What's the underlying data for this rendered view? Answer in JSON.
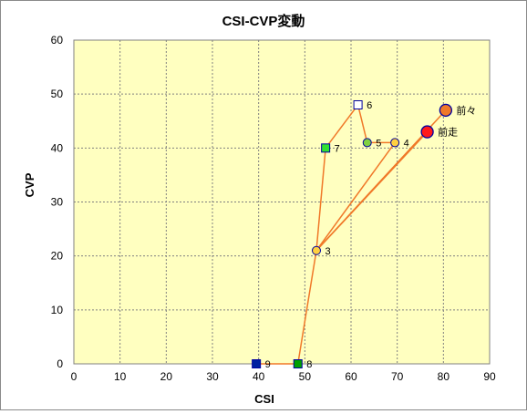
{
  "chart_data": {
    "type": "scatter",
    "title": "CSI-CVP変動",
    "xlabel": "CSI",
    "ylabel": "CVP",
    "xlim": [
      0,
      90
    ],
    "ylim": [
      0,
      60
    ],
    "x_ticks": [
      0,
      10,
      20,
      30,
      40,
      50,
      60,
      70,
      80,
      90
    ],
    "y_ticks": [
      0,
      10,
      20,
      30,
      40,
      50,
      60
    ],
    "grid": true,
    "plot_background": "#ffffc0",
    "line_color": "#f07828",
    "points": [
      {
        "id": "前々",
        "label": "前々",
        "x": 80.5,
        "y": 47,
        "marker": "circle",
        "size": "large",
        "fill": "#f07828"
      },
      {
        "id": "前走",
        "label": "前走",
        "x": 76.5,
        "y": 43,
        "marker": "circle",
        "size": "large",
        "fill": "#ff1a1a"
      },
      {
        "id": "3",
        "label": "3",
        "x": 52.5,
        "y": 21,
        "marker": "circle",
        "size": "small",
        "fill": "#ffd040"
      },
      {
        "id": "4",
        "label": "4",
        "x": 69.5,
        "y": 41,
        "marker": "circle",
        "size": "small",
        "fill": "#ffd040"
      },
      {
        "id": "5",
        "label": "5",
        "x": 63.5,
        "y": 41,
        "marker": "circle",
        "size": "small",
        "fill": "#80d040"
      },
      {
        "id": "6",
        "label": "6",
        "x": 61.5,
        "y": 48,
        "marker": "square",
        "size": "small",
        "fill": "#ffffff"
      },
      {
        "id": "7",
        "label": "7",
        "x": 54.5,
        "y": 40,
        "marker": "square",
        "size": "small",
        "fill": "#30e030"
      },
      {
        "id": "8",
        "label": "8",
        "x": 48.5,
        "y": 0,
        "marker": "square",
        "size": "small",
        "fill": "#00a000"
      },
      {
        "id": "9",
        "label": "9",
        "x": 39.5,
        "y": 0,
        "marker": "square",
        "size": "small",
        "fill": "#0020a0"
      }
    ],
    "connections": [
      [
        "前々",
        "3"
      ],
      [
        "前走",
        "3"
      ],
      [
        "4",
        "3"
      ],
      [
        "3",
        "8"
      ],
      [
        "9",
        "8"
      ],
      [
        "3",
        "7"
      ],
      [
        "7",
        "6"
      ],
      [
        "6",
        "5"
      ],
      [
        "5",
        "4"
      ]
    ]
  }
}
